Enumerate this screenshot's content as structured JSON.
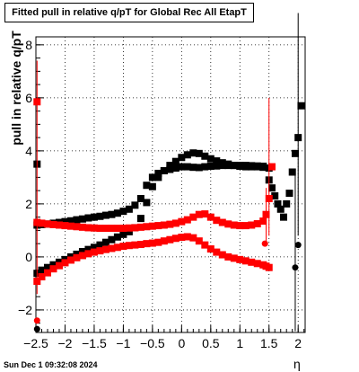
{
  "chart_data": {
    "type": "scatter",
    "title": "Fitted pull in relative q/pT for Global Rec All EtapT",
    "xlabel": "η",
    "ylabel": "pull in relative q/pT",
    "xlim": [
      -2.5,
      2.12
    ],
    "ylim": [
      -2.85,
      8.3
    ],
    "x_ticks": [
      -2.5,
      -2,
      -1.5,
      -1,
      -0.5,
      0,
      0.5,
      1,
      1.5,
      2
    ],
    "x_tick_labels": [
      "−2.5",
      "−2",
      "−1.5",
      "−1",
      "−0.5",
      "0",
      "0.5",
      "1",
      "1.5",
      "2"
    ],
    "y_ticks": [
      -2,
      0,
      2,
      4,
      6,
      8
    ],
    "y_tick_labels": [
      "−2",
      "0",
      "2",
      "4",
      "6",
      "8"
    ],
    "grid": true,
    "series": [
      {
        "color": "#000000",
        "marker": "square",
        "x": [
          -2.48,
          -2.4,
          -2.3,
          -2.2,
          -2.1,
          -2.0,
          -1.9,
          -1.8,
          -1.7,
          -1.6,
          -1.5,
          -1.4,
          -1.3,
          -1.2,
          -1.1,
          -1.0,
          -0.9,
          -0.8,
          -0.7,
          -0.6,
          -0.5,
          -0.4,
          -0.3,
          -0.2,
          -0.1,
          0.0,
          0.1,
          0.2,
          0.3,
          0.4,
          0.5,
          0.6,
          0.7,
          0.8,
          0.9,
          1.0,
          1.1,
          1.2,
          1.3,
          1.4,
          1.5,
          1.55,
          1.6,
          1.65,
          1.7,
          1.75,
          1.8,
          1.85,
          1.9,
          1.95,
          2.0,
          2.05
        ],
        "y": [
          1.2,
          1.22,
          1.24,
          1.27,
          1.3,
          1.33,
          1.36,
          1.4,
          1.43,
          1.47,
          1.5,
          1.53,
          1.57,
          1.6,
          1.65,
          1.72,
          1.8,
          1.95,
          2.2,
          2.7,
          3.0,
          3.15,
          3.25,
          3.3,
          3.35,
          3.4,
          3.4,
          3.38,
          3.37,
          3.4,
          3.42,
          3.43,
          3.45,
          3.45,
          3.45,
          3.45,
          3.45,
          3.44,
          3.43,
          3.42,
          2.9,
          2.6,
          2.3,
          2.0,
          1.8,
          1.5,
          2.0,
          2.4,
          3.2,
          3.9,
          4.5,
          5.7
        ]
      },
      {
        "color": "#000000",
        "marker": "square",
        "x": [
          -2.48,
          -2.4,
          -2.3,
          -2.2,
          -2.1,
          -2.0,
          -1.9,
          -1.8,
          -1.7,
          -1.6,
          -1.5,
          -1.4,
          -1.3,
          -1.2,
          -1.1,
          -1.0,
          -0.9,
          -0.8,
          -0.7,
          -0.6,
          -0.5,
          -0.4,
          -0.3,
          -0.2,
          -0.1,
          0.0,
          0.1,
          0.2,
          0.3,
          0.4,
          0.5,
          0.6,
          0.7,
          0.8,
          0.9,
          1.0,
          1.1,
          1.2,
          1.3,
          1.4,
          1.5
        ],
        "y": [
          -0.62,
          -0.5,
          -0.4,
          -0.3,
          -0.2,
          -0.1,
          0.0,
          0.1,
          0.2,
          0.28,
          0.36,
          0.45,
          0.55,
          0.65,
          0.75,
          0.85,
          0.95,
          1.1,
          1.45,
          2.05,
          2.65,
          3.0,
          3.25,
          3.45,
          3.6,
          3.75,
          3.85,
          3.92,
          3.9,
          3.8,
          3.7,
          3.62,
          3.55,
          3.5,
          3.45,
          3.42,
          3.4,
          3.4,
          3.4,
          3.38,
          3.35
        ]
      },
      {
        "color": "#ff0000",
        "marker": "square",
        "x": [
          -2.48,
          -2.4,
          -2.3,
          -2.2,
          -2.1,
          -2.0,
          -1.9,
          -1.8,
          -1.7,
          -1.6,
          -1.5,
          -1.4,
          -1.3,
          -1.2,
          -1.1,
          -1.0,
          -0.9,
          -0.8,
          -0.7,
          -0.6,
          -0.5,
          -0.4,
          -0.3,
          -0.2,
          -0.1,
          0.0,
          0.1,
          0.2,
          0.3,
          0.4,
          0.5,
          0.6,
          0.7,
          0.8,
          0.9,
          1.0,
          1.1,
          1.2,
          1.3,
          1.4,
          1.45,
          1.5,
          1.55
        ],
        "y": [
          1.3,
          1.27,
          1.24,
          1.22,
          1.2,
          1.18,
          1.16,
          1.14,
          1.12,
          1.1,
          1.09,
          1.08,
          1.08,
          1.08,
          1.08,
          1.08,
          1.09,
          1.1,
          1.12,
          1.14,
          1.16,
          1.18,
          1.2,
          1.23,
          1.27,
          1.33,
          1.4,
          1.5,
          1.6,
          1.62,
          1.5,
          1.38,
          1.3,
          1.24,
          1.2,
          1.18,
          1.18,
          1.2,
          1.25,
          1.35,
          1.6,
          2.2,
          3.4
        ]
      },
      {
        "color": "#ff0000",
        "marker": "square",
        "x": [
          -2.48,
          -2.4,
          -2.3,
          -2.2,
          -2.1,
          -2.0,
          -1.9,
          -1.8,
          -1.7,
          -1.6,
          -1.5,
          -1.4,
          -1.3,
          -1.2,
          -1.1,
          -1.0,
          -0.9,
          -0.8,
          -0.7,
          -0.6,
          -0.5,
          -0.4,
          -0.3,
          -0.2,
          -0.1,
          0.0,
          0.1,
          0.2,
          0.3,
          0.4,
          0.5,
          0.6,
          0.7,
          0.8,
          0.9,
          1.0,
          1.1,
          1.2,
          1.3,
          1.4,
          1.45,
          1.5
        ],
        "y": [
          -0.92,
          -0.75,
          -0.6,
          -0.45,
          -0.33,
          -0.22,
          -0.12,
          -0.03,
          0.05,
          0.12,
          0.18,
          0.23,
          0.28,
          0.32,
          0.36,
          0.4,
          0.43,
          0.45,
          0.47,
          0.5,
          0.52,
          0.55,
          0.6,
          0.65,
          0.7,
          0.74,
          0.76,
          0.72,
          0.6,
          0.45,
          0.3,
          0.18,
          0.08,
          0.0,
          -0.05,
          -0.1,
          -0.15,
          -0.2,
          -0.25,
          -0.3,
          -0.35,
          -0.4
        ]
      },
      {
        "color": "#000000",
        "marker": "circle",
        "x": [
          -2.48,
          1.95,
          2.0
        ],
        "y": [
          -2.72,
          -0.4,
          0.45
        ]
      },
      {
        "color": "#ff0000",
        "marker": "circle",
        "x": [
          -2.48,
          1.43
        ],
        "y": [
          -2.4,
          0.5
        ]
      },
      {
        "color": "#ff0000",
        "marker": "square",
        "x": [
          -2.48
        ],
        "y": [
          5.85
        ]
      },
      {
        "color": "#000000",
        "marker": "square",
        "x": [
          -2.48
        ],
        "y": [
          3.5
        ]
      }
    ]
  },
  "footer": {
    "timestamp": "Sun Dec  1 09:32:08 2024"
  }
}
